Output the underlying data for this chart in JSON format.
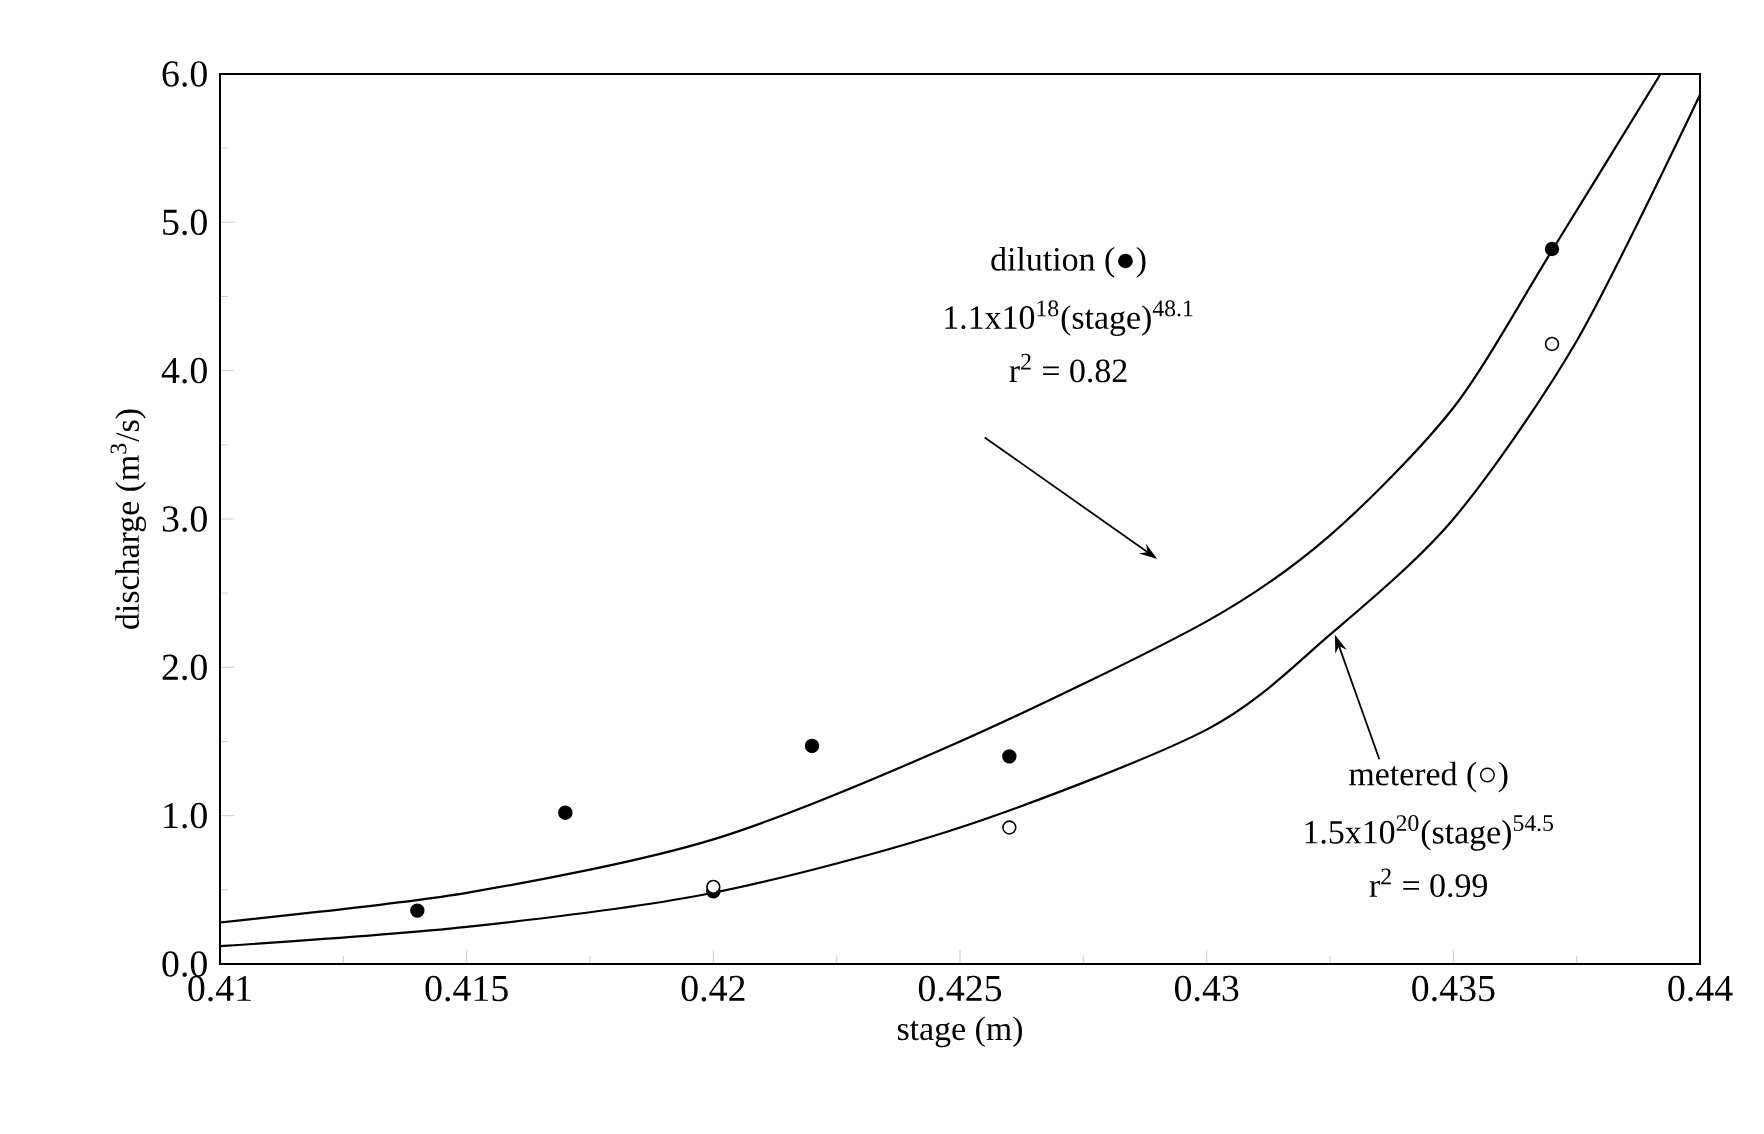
{
  "chart_data": {
    "type": "scatter",
    "xlabel": "stage (m)",
    "ylabel": "discharge (m$^{3}$/s)",
    "xlim": [
      0.41,
      0.44
    ],
    "ylim": [
      0,
      6
    ],
    "xticks": [
      0.41,
      0.415,
      0.42,
      0.425,
      0.43,
      0.435,
      0.44
    ],
    "yticks": [
      {
        "value": 0,
        "label": "0.0"
      },
      {
        "value": 1,
        "label": "1.0"
      },
      {
        "value": 2,
        "label": "2.0"
      },
      {
        "value": 3,
        "label": "3.0"
      },
      {
        "value": 4,
        "label": "4.0"
      },
      {
        "value": 5,
        "label": "5.0"
      },
      {
        "value": 6,
        "label": "6.0"
      }
    ],
    "grid": false,
    "series": [
      {
        "type": "line",
        "color": "#000000",
        "x": [
          0.41,
          0.415,
          0.42,
          0.425,
          0.43,
          0.4325,
          0.435,
          0.437,
          0.4392
        ],
        "values": [
          0.28,
          0.48,
          0.84,
          1.5,
          2.31,
          2.89,
          3.75,
          4.81,
          6.0
        ]
      },
      {
        "type": "line",
        "color": "#000000",
        "x": [
          0.41,
          0.415,
          0.42,
          0.425,
          0.43,
          0.4325,
          0.435,
          0.4375,
          0.44
        ],
        "values": [
          0.12,
          0.25,
          0.48,
          0.92,
          1.58,
          2.22,
          3.0,
          4.2,
          5.86
        ]
      },
      {
        "marker": "circle",
        "color": "#000000",
        "x": [
          0.414,
          0.417,
          0.42,
          0.422,
          0.426,
          0.437
        ],
        "values": [
          0.36,
          1.02,
          0.49,
          1.47,
          1.4,
          4.82
        ]
      },
      {
        "marker": "circle",
        "color": "#ffffff",
        "x": [
          0.42,
          0.426,
          0.437
        ],
        "values": [
          0.52,
          0.92,
          4.18
        ]
      }
    ],
    "annotations": [
      "dilution (●)",
      "1.1x10$^{18}$(stage)$^{48.1}$",
      "r$^{2}$ = 0.82",
      {
        "text": "metered (○)",
        "x": 0.4326,
        "y": 2.22
      },
      "1.5x10$^{20}$(stage)$^{54.5}$",
      "r$^{2}$ = 0.99"
    ]
  }
}
